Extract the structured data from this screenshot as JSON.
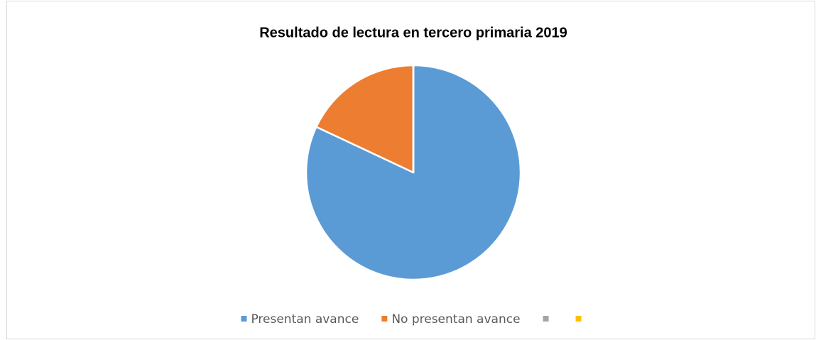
{
  "chart_data": {
    "type": "pie",
    "title": "Resultado de lectura en tercero primaria 2019",
    "categories": [
      "Presentan avance",
      "No presentan avance",
      null,
      null
    ],
    "values": [
      82,
      18,
      0,
      0
    ],
    "colors": [
      "#5b9bd5",
      "#ed7d31",
      "#a5a5a5",
      "#ffc000"
    ],
    "legend": "bottom"
  }
}
